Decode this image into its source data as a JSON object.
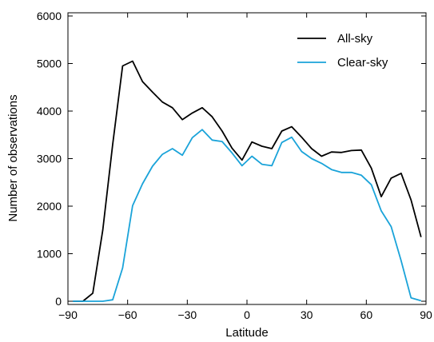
{
  "chart_data": {
    "type": "line",
    "title": "",
    "xlabel": "Latitude",
    "ylabel": "Number of observations",
    "xlim": [
      -90,
      90
    ],
    "ylim": [
      0,
      6000
    ],
    "xticks": [
      -90,
      -60,
      -30,
      0,
      30,
      60,
      90
    ],
    "xtick_labels": [
      "−90",
      "−60",
      "−30",
      "0",
      "30",
      "60",
      "90"
    ],
    "yticks": [
      0,
      1000,
      2000,
      3000,
      4000,
      5000,
      6000
    ],
    "ytick_labels": [
      "0",
      "1000",
      "2000",
      "3000",
      "4000",
      "5000",
      "6000"
    ],
    "grid": false,
    "legend_position": "top-right",
    "series": [
      {
        "name": "All-sky",
        "color": "#000000",
        "x": [
          -87.5,
          -82.5,
          -77.5,
          -72.5,
          -67.5,
          -62.5,
          -57.5,
          -52.5,
          -47.5,
          -42.5,
          -37.5,
          -32.5,
          -27.5,
          -22.5,
          -17.5,
          -12.5,
          -7.5,
          -2.5,
          2.5,
          7.5,
          12.5,
          17.5,
          22.5,
          27.5,
          32.5,
          37.5,
          42.5,
          47.5,
          52.5,
          57.5,
          62.5,
          67.5,
          72.5,
          77.5,
          82.5,
          87.5
        ],
        "y": [
          0,
          0,
          170,
          1500,
          3300,
          4950,
          5050,
          4620,
          4400,
          4190,
          4070,
          3820,
          3960,
          4070,
          3880,
          3580,
          3220,
          2970,
          3350,
          3260,
          3210,
          3580,
          3670,
          3450,
          3210,
          3050,
          3140,
          3130,
          3170,
          3180,
          2800,
          2200,
          2590,
          2690,
          2130,
          1350
        ]
      },
      {
        "name": "Clear-sky",
        "color": "#1aa3d9",
        "x": [
          -87.5,
          -82.5,
          -77.5,
          -72.5,
          -67.5,
          -62.5,
          -57.5,
          -52.5,
          -47.5,
          -42.5,
          -37.5,
          -32.5,
          -27.5,
          -22.5,
          -17.5,
          -12.5,
          -7.5,
          -2.5,
          2.5,
          7.5,
          12.5,
          17.5,
          22.5,
          27.5,
          32.5,
          37.5,
          42.5,
          47.5,
          52.5,
          57.5,
          62.5,
          67.5,
          72.5,
          77.5,
          82.5,
          87.5
        ],
        "y": [
          0,
          0,
          0,
          0,
          30,
          700,
          2010,
          2470,
          2840,
          3090,
          3210,
          3070,
          3440,
          3610,
          3390,
          3360,
          3120,
          2850,
          3050,
          2880,
          2850,
          3340,
          3450,
          3150,
          3000,
          2900,
          2770,
          2710,
          2710,
          2650,
          2450,
          1900,
          1570,
          850,
          70,
          10
        ]
      }
    ]
  }
}
